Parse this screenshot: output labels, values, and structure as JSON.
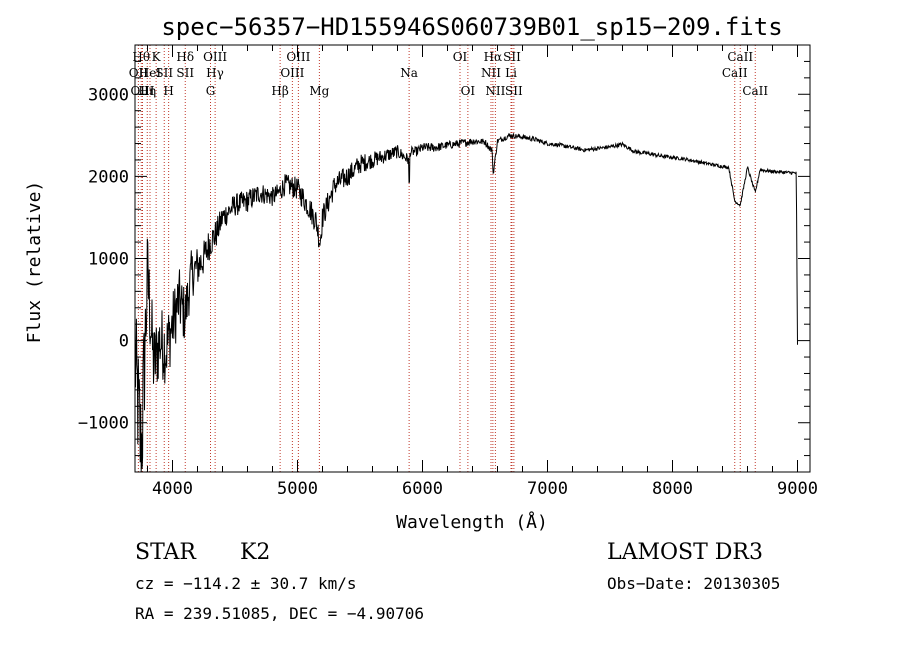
{
  "chart_data": {
    "type": "line",
    "title": "spec−56357−HD155946S060739B01_sp15−209.fits",
    "xlabel": "Wavelength (Å)",
    "ylabel": "Flux (relative)",
    "xlim": [
      3700,
      9100
    ],
    "ylim": [
      -1600,
      3600
    ],
    "xticks": [
      4000,
      5000,
      6000,
      7000,
      8000,
      9000
    ],
    "yticks": [
      -1000,
      0,
      1000,
      2000,
      3000
    ],
    "ytick_labels": [
      "−1000",
      "0",
      "1000",
      "2000",
      "3000"
    ],
    "grid": false,
    "series": [
      {
        "x": [
          3700,
          3750,
          3800,
          3850,
          3900,
          3950,
          4000,
          4050,
          4100,
          4150,
          4200,
          4250,
          4300,
          4350,
          4400,
          4500,
          4600,
          4700,
          4800,
          4850,
          4900,
          5000,
          5100,
          5150,
          5180,
          5200,
          5300,
          5400,
          5500,
          5600,
          5700,
          5800,
          5890,
          5893,
          5900,
          5950,
          6000,
          6100,
          6200,
          6300,
          6400,
          6500,
          6560,
          6563,
          6600,
          6700,
          6800,
          6900,
          7000,
          7100,
          7200,
          7300,
          7400,
          7500,
          7600,
          7700,
          7800,
          7900,
          8000,
          8100,
          8200,
          8300,
          8400,
          8450,
          8498,
          8542,
          8600,
          8662,
          8700,
          8800,
          8900,
          8990,
          9000
        ],
        "y": [
          -200,
          -1400,
          800,
          -300,
          0,
          -100,
          200,
          500,
          300,
          800,
          900,
          1000,
          1200,
          1300,
          1500,
          1650,
          1700,
          1800,
          1750,
          1800,
          1900,
          1850,
          1600,
          1450,
          1200,
          1500,
          1900,
          2000,
          2150,
          2200,
          2250,
          2300,
          2200,
          1700,
          2300,
          2300,
          2350,
          2350,
          2380,
          2400,
          2430,
          2420,
          2300,
          2000,
          2430,
          2500,
          2480,
          2450,
          2400,
          2380,
          2350,
          2320,
          2340,
          2360,
          2390,
          2300,
          2280,
          2250,
          2230,
          2210,
          2180,
          2150,
          2120,
          2110,
          1700,
          1650,
          2110,
          1800,
          2080,
          2060,
          2050,
          2040,
          -50
        ],
        "noise": [
          700,
          900,
          600,
          500,
          450,
          450,
          400,
          400,
          350,
          300,
          260,
          220,
          200,
          180,
          160,
          140,
          140,
          130,
          120,
          120,
          130,
          140,
          150,
          160,
          160,
          150,
          140,
          130,
          120,
          100,
          90,
          80,
          70,
          60,
          60,
          60,
          60,
          55,
          50,
          50,
          45,
          40,
          40,
          35,
          35,
          30,
          30,
          30,
          25,
          25,
          25,
          25,
          25,
          25,
          25,
          25,
          25,
          25,
          20,
          20,
          20,
          20,
          20,
          20,
          20,
          20,
          20,
          20,
          20,
          20,
          20,
          20,
          0
        ]
      }
    ],
    "lines": [
      {
        "w": 3750,
        "label": "Hθ",
        "row": 1
      },
      {
        "w": 3727,
        "label": "OII",
        "row": 2
      },
      {
        "w": 3869,
        "label": "K",
        "row": 1
      },
      {
        "w": 3820,
        "label": "HeI",
        "row": 2
      },
      {
        "w": 3760,
        "label": "OIII",
        "row": 3
      },
      {
        "w": 3798,
        "label": "Hη",
        "row": 3
      },
      {
        "w": 3934,
        "label": "SII",
        "row": 2
      },
      {
        "w": 3969,
        "label": "H",
        "row": 3
      },
      {
        "w": 4102,
        "label": "Hδ",
        "row": 1
      },
      {
        "w": 4102,
        "label": "SII",
        "row": 2
      },
      {
        "w": 4341,
        "label": "OIII",
        "row": 1
      },
      {
        "w": 4340,
        "label": "Hγ",
        "row": 2
      },
      {
        "w": 4304,
        "label": "G",
        "row": 3
      },
      {
        "w": 4861,
        "label": "Hβ",
        "row": 3
      },
      {
        "w": 5007,
        "label": "OIII",
        "row": 1
      },
      {
        "w": 4959,
        "label": "OIII",
        "row": 2
      },
      {
        "w": 5175,
        "label": "Mg",
        "row": 3
      },
      {
        "w": 5893,
        "label": "Na",
        "row": 2
      },
      {
        "w": 6300,
        "label": "OI",
        "row": 1
      },
      {
        "w": 6363,
        "label": "OI",
        "row": 3
      },
      {
        "w": 6563,
        "label": "Hα",
        "row": 1
      },
      {
        "w": 6548,
        "label": "NII",
        "row": 2
      },
      {
        "w": 6583,
        "label": "NII",
        "row": 3
      },
      {
        "w": 6716,
        "label": "SII",
        "row": 1
      },
      {
        "w": 6708,
        "label": "Li",
        "row": 2
      },
      {
        "w": 6731,
        "label": "SII",
        "row": 3
      },
      {
        "w": 8498,
        "label": "CaII",
        "row": 2
      },
      {
        "w": 8542,
        "label": "CaII",
        "row": 1
      },
      {
        "w": 8662,
        "label": "CaII",
        "row": 3
      }
    ]
  },
  "footer": {
    "class_label": "STAR",
    "subclass": "K2",
    "survey": "LAMOST DR3",
    "cz": "cz = −114.2 ± 30.7 km/s",
    "obs_date": "Obs−Date: 20130305",
    "coords": "RA = 239.51085, DEC =  −4.90706"
  }
}
